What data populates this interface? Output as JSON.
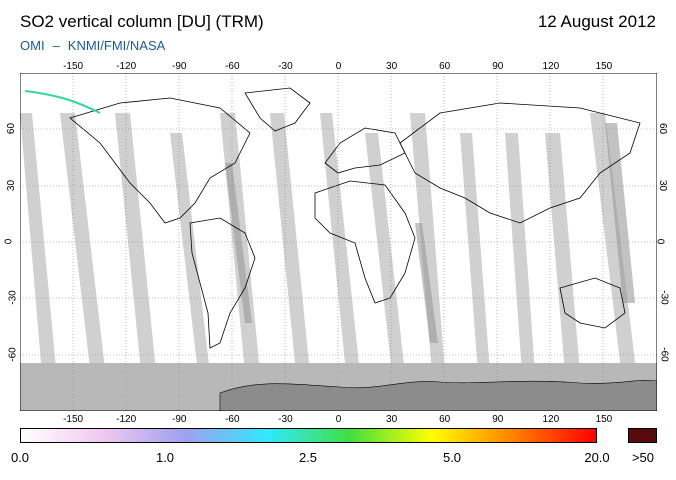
{
  "header": {
    "title": "SO2 vertical column [DU] (TRM)",
    "date": "12 August 2012",
    "subtitle_left": "OMI",
    "subtitle_dash": "–",
    "subtitle_right": "KNMI/FMI/NASA"
  },
  "map": {
    "lon_ticks_top": [
      "-150",
      "-120",
      "-90",
      "-60",
      "-30",
      "0",
      "30",
      "60",
      "90",
      "120",
      "150"
    ],
    "lon_ticks_bottom": [
      "-150",
      "-120",
      "-90",
      "-60",
      "-30",
      "0",
      "30",
      "60",
      "90",
      "120",
      "150"
    ],
    "lat_ticks_left": [
      "60",
      "30",
      "0",
      "-30",
      "-60"
    ],
    "lat_ticks_right": [
      "60",
      "30",
      "0",
      "-30",
      "-60"
    ],
    "lon_range": [
      -180,
      180
    ],
    "lat_range": [
      -90,
      90
    ],
    "grid": "dotted",
    "colors": {
      "ocean": "#ffffff",
      "swath_gap": "#cccccc",
      "polar_night": "#b8b8b8",
      "antarctica": "#8c8c8c",
      "coastline": "#000000"
    }
  },
  "legend": {
    "labels": [
      "0.0",
      "1.0",
      "2.5",
      "5.0",
      "20.0",
      ">50"
    ],
    "colors": [
      "#ffffff",
      "#f0c8f0",
      "#a0a0f0",
      "#30e8ff",
      "#40e040",
      "#ffff00",
      "#ff8000",
      "#ff0000"
    ],
    "over_color": "#5a0a0a"
  }
}
